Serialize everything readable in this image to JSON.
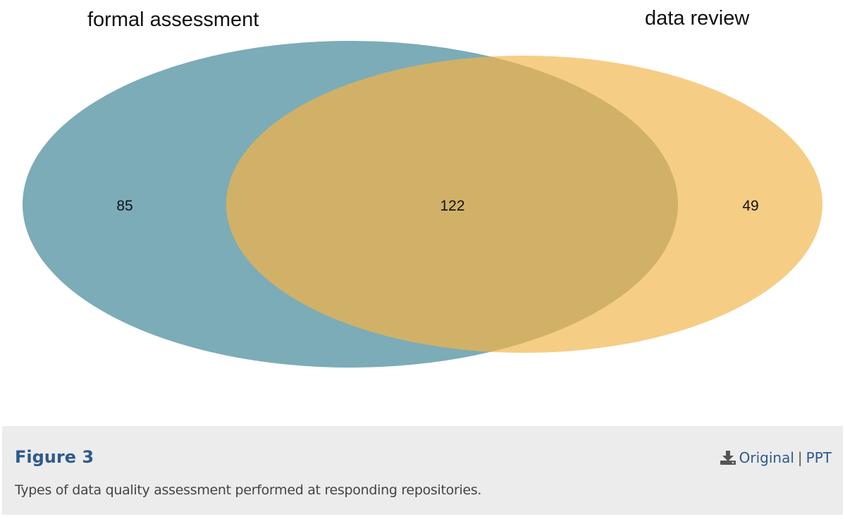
{
  "diagram": {
    "type": "venn",
    "sets": [
      {
        "name": "formal assessment",
        "color": "#5e9aa8"
      },
      {
        "name": "data review",
        "color": "#f4c26a"
      }
    ],
    "regions": {
      "formal_only": "85",
      "both": "122",
      "review_only": "49"
    }
  },
  "caption": {
    "title": "Figure 3",
    "text": "Types of data quality assessment performed at responding repositories.",
    "download_icon": "download-icon",
    "link_original": "Original",
    "separator": "|",
    "link_ppt": "PPT"
  },
  "colors": {
    "accent": "#2d5a8c",
    "panel_bg": "#ececec"
  }
}
